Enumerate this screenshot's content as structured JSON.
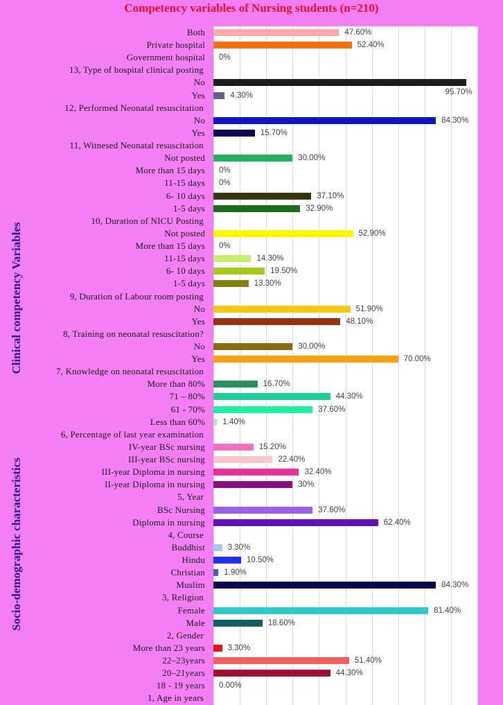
{
  "chart_data": {
    "type": "bar",
    "orientation": "horizontal",
    "title": "Competency variables of Nursing students (n=210)",
    "group_labels": {
      "clinical": "Clinical competency Variables",
      "socio": "Socio-demographic characteristics"
    },
    "xlim": [
      0,
      100
    ],
    "rows": [
      {
        "label": "Both",
        "value": 47.6,
        "text": "47.60%",
        "color": "#ffaaaa"
      },
      {
        "label": "Private hospital",
        "value": 52.4,
        "text": "52.40%",
        "color": "#f07010"
      },
      {
        "label": "Government hospital",
        "value": 0,
        "text": "0%",
        "color": "#cccccc"
      },
      {
        "label": "13, Type of hospital clinical posting",
        "header": true
      },
      {
        "label": "No",
        "value": 95.7,
        "text": "95.70%",
        "color": "#1c1c1c",
        "below": true
      },
      {
        "label": "Yes",
        "value": 4.3,
        "text": "4.30%",
        "color": "#5f5f8f"
      },
      {
        "label": "12, Performed Neonatal resuscitation",
        "header": true
      },
      {
        "label": "No",
        "value": 84.3,
        "text": "84.30%",
        "color": "#0f14c8"
      },
      {
        "label": "Yes",
        "value": 15.7,
        "text": "15.70%",
        "color": "#0a0a5a"
      },
      {
        "label": "11, Witnesed Neonatal resuscitation",
        "header": true
      },
      {
        "label": "Not posted",
        "value": 30.0,
        "text": "30.00%",
        "color": "#22b060"
      },
      {
        "label": "More than 15 days",
        "value": 0,
        "text": "0%",
        "color": "#cccccc"
      },
      {
        "label": "11-15 days",
        "value": 0,
        "text": "0%",
        "color": "#cccccc"
      },
      {
        "label": "6- 10 days",
        "value": 37.1,
        "text": "37.10%",
        "color": "#363610"
      },
      {
        "label": "1-5 days",
        "value": 32.9,
        "text": "32.90%",
        "color": "#1a6a1a"
      },
      {
        "label": "10, Duration of NICU Posting",
        "header": true
      },
      {
        "label": "Not posted",
        "value": 52.9,
        "text": "52.90%",
        "color": "#f8f800"
      },
      {
        "label": "More than 15 days",
        "value": 0,
        "text": "0%",
        "color": "#cccccc"
      },
      {
        "label": "11-15 days",
        "value": 14.3,
        "text": "14.30%",
        "color": "#c8f070"
      },
      {
        "label": "6- 10 days",
        "value": 19.5,
        "text": "19.50%",
        "color": "#a6c81a"
      },
      {
        "label": "1-5 days",
        "value": 13.3,
        "text": "13.30%",
        "color": "#808010"
      },
      {
        "label": "9, Duration of Labour room posting",
        "header": true
      },
      {
        "label": "No",
        "value": 51.9,
        "text": "51.90%",
        "color": "#f8c810"
      },
      {
        "label": "Yes",
        "value": 48.1,
        "text": "48.10%",
        "color": "#983010"
      },
      {
        "label": "8, Training on neonatal resuscitation?",
        "header": true
      },
      {
        "label": "No",
        "value": 30.0,
        "text": "30.00%",
        "color": "#8a6a10"
      },
      {
        "label": "Yes",
        "value": 70.0,
        "text": "70.00%",
        "color": "#f8a010"
      },
      {
        "label": "7, Knowledge on neonatal resuscitation",
        "header": true
      },
      {
        "label": "More than 80%",
        "value": 16.7,
        "text": "16.70%",
        "color": "#2a9060"
      },
      {
        "label": "71 – 80%",
        "value": 44.3,
        "text": "44.30%",
        "color": "#18d098"
      },
      {
        "label": "61 - 70%",
        "value": 37.6,
        "text": "37.60%",
        "color": "#20f0a0"
      },
      {
        "label": "Less than 60%",
        "value": 1.4,
        "text": "1.40%",
        "color": "#a8f0a8"
      },
      {
        "label": "6, Percentage of last year examination",
        "header": true
      },
      {
        "label": "IV-year BSc nursing",
        "value": 15.2,
        "text": "15.20%",
        "color": "#f070c0"
      },
      {
        "label": "III-year BSc nursing",
        "value": 22.4,
        "text": "22.40%",
        "color": "#f8c8c8"
      },
      {
        "label": "III-year Diploma in nursing",
        "value": 32.4,
        "text": "32.40%",
        "color": "#e8309a"
      },
      {
        "label": "II-year Diploma in nursing",
        "value": 30,
        "text": "30%",
        "color": "#8a1080"
      },
      {
        "label": "5, Year",
        "header": true
      },
      {
        "label": "BSc Nursing",
        "value": 37.6,
        "text": "37.60%",
        "color": "#9a60e8"
      },
      {
        "label": "Diploma in nursing",
        "value": 62.4,
        "text": "62.40%",
        "color": "#6010b8"
      },
      {
        "label": "4, Course",
        "header": true
      },
      {
        "label": "Buddhist",
        "value": 3.3,
        "text": "3.30%",
        "color": "#a0c8f0"
      },
      {
        "label": "Hindu",
        "value": 10.5,
        "text": "10.50%",
        "color": "#2030f0"
      },
      {
        "label": "Christian",
        "value": 1.9,
        "text": "1.90%",
        "color": "#4060b0"
      },
      {
        "label": "Muslim",
        "value": 84.3,
        "text": "84.30%",
        "color": "#0a0a50"
      },
      {
        "label": "3, Religion",
        "header": true
      },
      {
        "label": "Female",
        "value": 81.4,
        "text": "81.40%",
        "color": "#30c8c8"
      },
      {
        "label": "Male",
        "value": 18.6,
        "text": "18.60%",
        "color": "#106060"
      },
      {
        "label": "2, Gender",
        "header": true
      },
      {
        "label": "More than 23 years",
        "value": 3.3,
        "text": "3.30%",
        "color": "#e81010"
      },
      {
        "label": "22–23years",
        "value": 51.4,
        "text": "51.40%",
        "color": "#f06060"
      },
      {
        "label": "20–21years",
        "value": 44.3,
        "text": "44.30%",
        "color": "#a01030"
      },
      {
        "label": "18 - 19 years",
        "value": 0,
        "text": "0.00%",
        "color": "#cccccc"
      },
      {
        "label": "1, Age in years",
        "header": true
      }
    ]
  }
}
